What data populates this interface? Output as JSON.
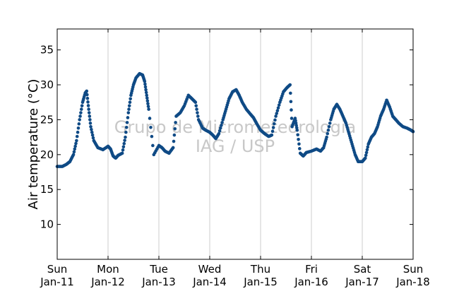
{
  "chart_data": {
    "type": "scatter",
    "ylabel": "Air temperature (°C)",
    "xlabel": "",
    "ylim": [
      5,
      38
    ],
    "yticks": [
      10,
      15,
      20,
      25,
      30,
      35
    ],
    "x_range_days": [
      11,
      18
    ],
    "xticks": [
      {
        "day": 11,
        "weekday": "Sun",
        "date": "Jan-11"
      },
      {
        "day": 12,
        "weekday": "Mon",
        "date": "Jan-12"
      },
      {
        "day": 13,
        "weekday": "Tue",
        "date": "Jan-13"
      },
      {
        "day": 14,
        "weekday": "Wed",
        "date": "Jan-14"
      },
      {
        "day": 15,
        "weekday": "Thu",
        "date": "Jan-15"
      },
      {
        "day": 16,
        "weekday": "Fri",
        "date": "Jan-16"
      },
      {
        "day": 17,
        "weekday": "Sat",
        "date": "Jan-17"
      },
      {
        "day": 18,
        "weekday": "Sun",
        "date": "Jan-18"
      }
    ],
    "grid": "vertical",
    "marker_color": "#0f4a85",
    "watermark": [
      "Grupo de Micrometeorologia",
      "IAG / USP"
    ],
    "series": [
      {
        "x_unit": "day of January",
        "points": [
          [
            11.0,
            18.3
          ],
          [
            11.1,
            18.3
          ],
          [
            11.18,
            18.6
          ],
          [
            11.25,
            19.0
          ],
          [
            11.32,
            20.0
          ],
          [
            11.38,
            22.0
          ],
          [
            11.44,
            25.0
          ],
          [
            11.5,
            27.5
          ],
          [
            11.55,
            28.8
          ],
          [
            11.58,
            29.1
          ],
          [
            11.62,
            26.5
          ],
          [
            11.66,
            24.0
          ],
          [
            11.72,
            22.0
          ],
          [
            11.8,
            21.0
          ],
          [
            11.9,
            20.7
          ],
          [
            12.0,
            21.2
          ],
          [
            12.05,
            20.8
          ],
          [
            12.1,
            19.8
          ],
          [
            12.15,
            19.5
          ],
          [
            12.2,
            19.9
          ],
          [
            12.28,
            20.2
          ],
          [
            12.34,
            22.5
          ],
          [
            12.4,
            26.0
          ],
          [
            12.45,
            28.5
          ],
          [
            12.5,
            30.0
          ],
          [
            12.55,
            31.0
          ],
          [
            12.62,
            31.6
          ],
          [
            12.68,
            31.4
          ],
          [
            12.72,
            30.5
          ],
          [
            12.76,
            28.5
          ],
          [
            12.8,
            26.5
          ],
          [
            12.9,
            20.0
          ],
          [
            13.0,
            21.3
          ],
          [
            13.06,
            21.0
          ],
          [
            13.12,
            20.5
          ],
          [
            13.2,
            20.2
          ],
          [
            13.28,
            21.0
          ],
          [
            13.34,
            25.5
          ],
          [
            13.42,
            26.0
          ],
          [
            13.5,
            27.0
          ],
          [
            13.58,
            28.5
          ],
          [
            13.65,
            28.0
          ],
          [
            13.72,
            27.5
          ],
          [
            13.78,
            25.0
          ],
          [
            13.86,
            23.8
          ],
          [
            13.92,
            23.5
          ],
          [
            14.0,
            23.2
          ],
          [
            14.06,
            22.8
          ],
          [
            14.12,
            22.3
          ],
          [
            14.18,
            23.0
          ],
          [
            14.26,
            25.0
          ],
          [
            14.32,
            26.5
          ],
          [
            14.38,
            28.0
          ],
          [
            14.45,
            29.0
          ],
          [
            14.52,
            29.3
          ],
          [
            14.58,
            28.5
          ],
          [
            14.64,
            27.5
          ],
          [
            14.72,
            26.5
          ],
          [
            14.8,
            25.8
          ],
          [
            14.86,
            25.3
          ],
          [
            14.92,
            24.5
          ],
          [
            15.0,
            23.5
          ],
          [
            15.08,
            23.0
          ],
          [
            15.16,
            22.6
          ],
          [
            15.22,
            22.8
          ],
          [
            15.3,
            25.5
          ],
          [
            15.38,
            27.5
          ],
          [
            15.45,
            29.0
          ],
          [
            15.52,
            29.6
          ],
          [
            15.58,
            30.0
          ],
          [
            15.62,
            24.0
          ],
          [
            15.68,
            25.2
          ],
          [
            15.72,
            23.5
          ],
          [
            15.78,
            20.2
          ],
          [
            15.84,
            19.8
          ],
          [
            15.9,
            20.3
          ],
          [
            16.0,
            20.5
          ],
          [
            16.1,
            20.8
          ],
          [
            16.18,
            20.5
          ],
          [
            16.24,
            21.0
          ],
          [
            16.3,
            22.5
          ],
          [
            16.38,
            25.0
          ],
          [
            16.44,
            26.5
          ],
          [
            16.5,
            27.2
          ],
          [
            16.56,
            26.5
          ],
          [
            16.62,
            25.5
          ],
          [
            16.68,
            24.5
          ],
          [
            16.74,
            23.0
          ],
          [
            16.8,
            21.5
          ],
          [
            16.86,
            20.0
          ],
          [
            16.92,
            19.0
          ],
          [
            17.0,
            19.0
          ],
          [
            17.06,
            19.5
          ],
          [
            17.12,
            21.5
          ],
          [
            17.18,
            22.5
          ],
          [
            17.24,
            23.0
          ],
          [
            17.3,
            24.0
          ],
          [
            17.36,
            25.5
          ],
          [
            17.42,
            26.5
          ],
          [
            17.48,
            27.8
          ],
          [
            17.54,
            26.8
          ],
          [
            17.6,
            25.5
          ],
          [
            17.66,
            25.0
          ],
          [
            17.72,
            24.5
          ],
          [
            17.8,
            24.0
          ],
          [
            17.88,
            23.8
          ],
          [
            17.96,
            23.5
          ],
          [
            18.0,
            23.3
          ]
        ]
      }
    ]
  }
}
